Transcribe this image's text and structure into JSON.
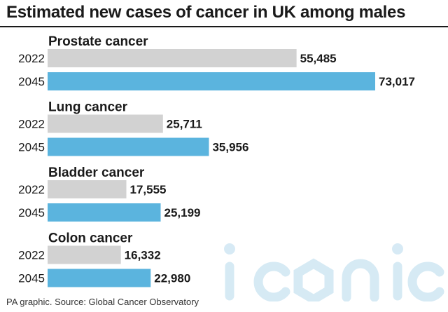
{
  "title": "Estimated new cases of cancer in UK among males",
  "source": "PA graphic. Source: Global Cancer Observatory",
  "watermark_text": "iconic",
  "colors": {
    "year_2022": "#d2d2d2",
    "year_2045": "#5bb4de",
    "text": "#1a1a1a"
  },
  "chart_data": {
    "type": "bar",
    "orientation": "horizontal",
    "title": "Estimated new cases of cancer in UK among males",
    "series_labels": [
      "2022",
      "2045"
    ],
    "groups": [
      {
        "name": "Prostate cancer",
        "values": [
          {
            "year": "2022",
            "value": 55485,
            "label": "55,485"
          },
          {
            "year": "2045",
            "value": 73017,
            "label": "73,017"
          }
        ]
      },
      {
        "name": "Lung cancer",
        "values": [
          {
            "year": "2022",
            "value": 25711,
            "label": "25,711"
          },
          {
            "year": "2045",
            "value": 35956,
            "label": "35,956"
          }
        ]
      },
      {
        "name": "Bladder cancer",
        "values": [
          {
            "year": "2022",
            "value": 17555,
            "label": "17,555"
          },
          {
            "year": "2045",
            "value": 25199,
            "label": "25,199"
          }
        ]
      },
      {
        "name": "Colon cancer",
        "values": [
          {
            "year": "2022",
            "value": 16332,
            "label": "16,332"
          },
          {
            "year": "2045",
            "value": 22980,
            "label": "22,980"
          }
        ]
      }
    ],
    "grid": false,
    "legend": "none"
  }
}
